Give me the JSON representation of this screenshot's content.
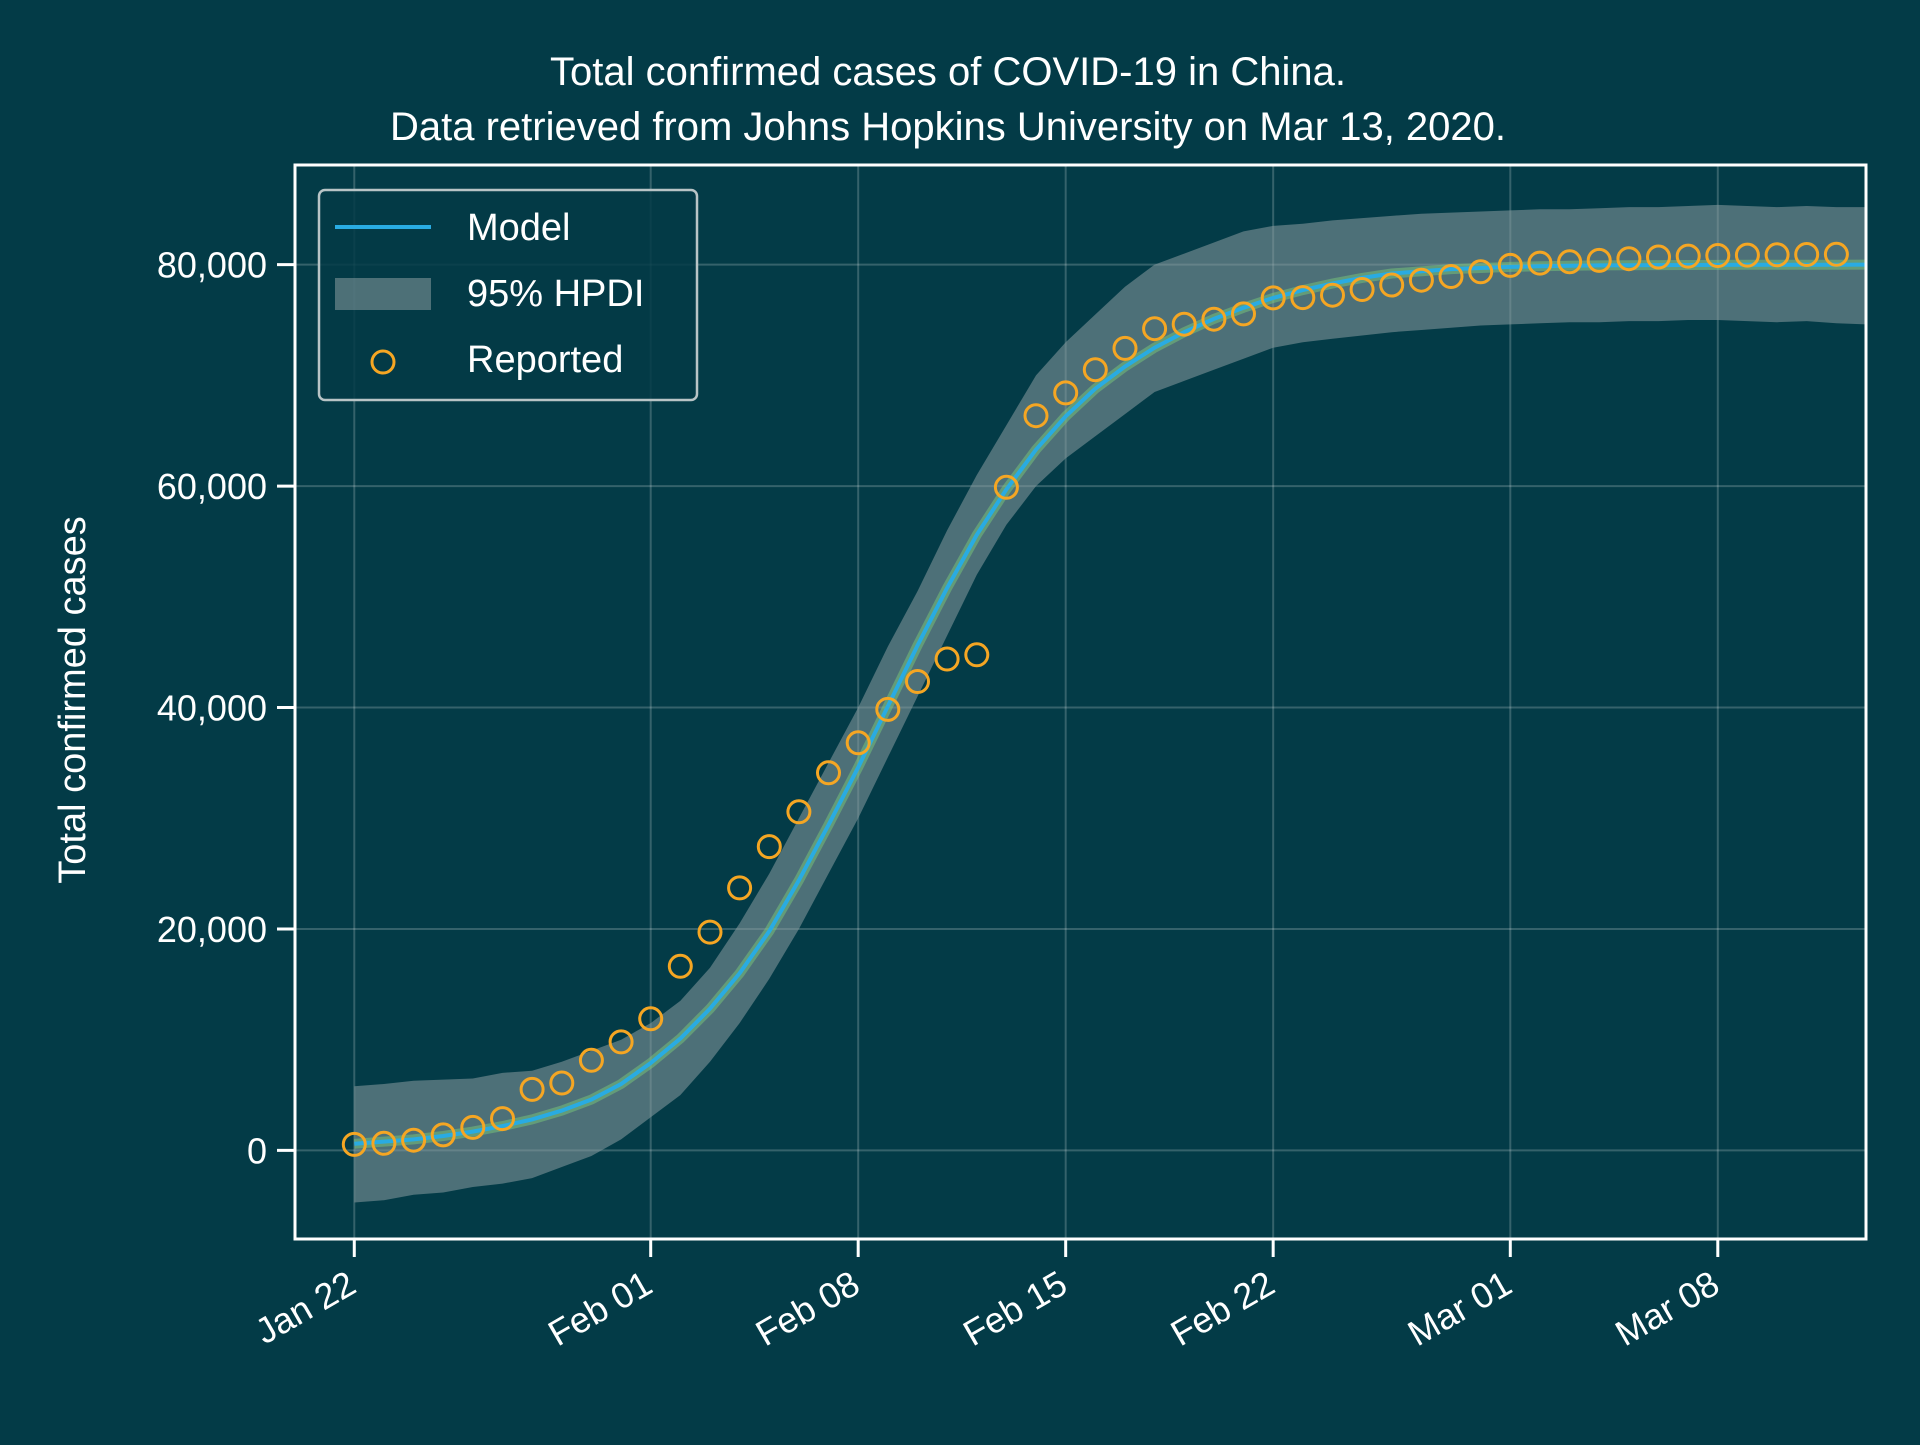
{
  "colors": {
    "background": "#033b47",
    "axes": "#ffffff",
    "grid": "#ffffff",
    "model": "#29abe2",
    "band": "#8a9da0",
    "band_center": "#7ed37a",
    "reported": "#f5a623"
  },
  "chart_data": {
    "type": "line",
    "title": "Total confirmed cases of COVID-19 in China.",
    "subtitle": "Data retrieved from Johns Hopkins University on Mar 13, 2020.",
    "xlabel": "",
    "ylabel": "Total confirmed cases",
    "x_type": "date",
    "x_range": [
      "2020-01-20",
      "2020-03-13"
    ],
    "xlim": [
      "2020-01-20",
      "2020-03-13"
    ],
    "ylim": [
      -8000,
      89000
    ],
    "grid": true,
    "legend_position": "upper-left",
    "x_ticks": [
      {
        "date": "2020-01-22",
        "label": "Jan 22"
      },
      {
        "date": "2020-02-01",
        "label": "Feb 01"
      },
      {
        "date": "2020-02-08",
        "label": "Feb 08"
      },
      {
        "date": "2020-02-15",
        "label": "Feb 15"
      },
      {
        "date": "2020-02-22",
        "label": "Feb 22"
      },
      {
        "date": "2020-03-01",
        "label": "Mar 01"
      },
      {
        "date": "2020-03-08",
        "label": "Mar 08"
      }
    ],
    "y_ticks": [
      {
        "value": 0,
        "label": "0"
      },
      {
        "value": 20000,
        "label": "20,000"
      },
      {
        "value": 40000,
        "label": "40,000"
      },
      {
        "value": 60000,
        "label": "60,000"
      },
      {
        "value": 80000,
        "label": "80,000"
      }
    ],
    "legend": [
      {
        "label": "Model",
        "kind": "line"
      },
      {
        "label": "95% HPDI",
        "kind": "band"
      },
      {
        "label": "Reported",
        "kind": "marker"
      }
    ],
    "series": [
      {
        "name": "Model",
        "kind": "line",
        "x": [
          "2020-01-22",
          "2020-01-23",
          "2020-01-24",
          "2020-01-25",
          "2020-01-26",
          "2020-01-27",
          "2020-01-28",
          "2020-01-29",
          "2020-01-30",
          "2020-01-31",
          "2020-02-01",
          "2020-02-02",
          "2020-02-03",
          "2020-02-04",
          "2020-02-05",
          "2020-02-06",
          "2020-02-07",
          "2020-02-08",
          "2020-02-09",
          "2020-02-10",
          "2020-02-11",
          "2020-02-12",
          "2020-02-13",
          "2020-02-14",
          "2020-02-15",
          "2020-02-16",
          "2020-02-17",
          "2020-02-18",
          "2020-02-19",
          "2020-02-20",
          "2020-02-21",
          "2020-02-22",
          "2020-02-23",
          "2020-02-24",
          "2020-02-25",
          "2020-02-26",
          "2020-02-27",
          "2020-02-28",
          "2020-02-29",
          "2020-03-01",
          "2020-03-02",
          "2020-03-03",
          "2020-03-04",
          "2020-03-05",
          "2020-03-06",
          "2020-03-07",
          "2020-03-08",
          "2020-03-09",
          "2020-03-10",
          "2020-03-11",
          "2020-03-12",
          "2020-03-13"
        ],
        "y": [
          600,
          800,
          1000,
          1300,
          1700,
          2200,
          2800,
          3600,
          4600,
          6000,
          7900,
          10100,
          12800,
          16000,
          19800,
          24400,
          29400,
          34600,
          40100,
          45600,
          50800,
          55600,
          59700,
          63300,
          66300,
          68800,
          70800,
          72500,
          73900,
          75100,
          76100,
          77000,
          77700,
          78300,
          78800,
          79200,
          79400,
          79600,
          79700,
          79800,
          79850,
          79900,
          79930,
          79950,
          79960,
          79970,
          79980,
          79985,
          79990,
          79990,
          79995,
          80000
        ]
      },
      {
        "name": "95% HPDI",
        "kind": "band",
        "x": [
          "2020-01-22",
          "2020-01-23",
          "2020-01-24",
          "2020-01-25",
          "2020-01-26",
          "2020-01-27",
          "2020-01-28",
          "2020-01-29",
          "2020-01-30",
          "2020-01-31",
          "2020-02-01",
          "2020-02-02",
          "2020-02-03",
          "2020-02-04",
          "2020-02-05",
          "2020-02-06",
          "2020-02-07",
          "2020-02-08",
          "2020-02-09",
          "2020-02-10",
          "2020-02-11",
          "2020-02-12",
          "2020-02-13",
          "2020-02-14",
          "2020-02-15",
          "2020-02-16",
          "2020-02-17",
          "2020-02-18",
          "2020-02-19",
          "2020-02-20",
          "2020-02-21",
          "2020-02-22",
          "2020-02-23",
          "2020-02-24",
          "2020-02-25",
          "2020-02-26",
          "2020-02-27",
          "2020-02-28",
          "2020-02-29",
          "2020-03-01",
          "2020-03-02",
          "2020-03-03",
          "2020-03-04",
          "2020-03-05",
          "2020-03-06",
          "2020-03-07",
          "2020-03-08",
          "2020-03-09",
          "2020-03-10",
          "2020-03-11",
          "2020-03-12",
          "2020-03-13"
        ],
        "lower": [
          -4700,
          -4500,
          -4000,
          -3800,
          -3300,
          -3000,
          -2500,
          -1500,
          -500,
          1000,
          3000,
          5000,
          8000,
          11500,
          15500,
          20000,
          25000,
          30000,
          35500,
          41000,
          46500,
          52000,
          56500,
          60000,
          62500,
          64500,
          66500,
          68500,
          69500,
          70500,
          71500,
          72500,
          73000,
          73300,
          73600,
          73900,
          74100,
          74300,
          74500,
          74600,
          74700,
          74800,
          74800,
          74900,
          74900,
          75000,
          75000,
          74900,
          74800,
          74900,
          74700,
          74600
        ],
        "upper": [
          5800,
          6000,
          6300,
          6400,
          6500,
          7000,
          7200,
          8000,
          9000,
          10000,
          11500,
          13500,
          16500,
          20500,
          25000,
          30000,
          35000,
          40000,
          45500,
          50500,
          56000,
          61000,
          65500,
          70000,
          73000,
          75500,
          78000,
          80000,
          81000,
          82000,
          83000,
          83500,
          83700,
          84000,
          84200,
          84400,
          84600,
          84700,
          84800,
          84900,
          85000,
          85000,
          85100,
          85200,
          85200,
          85300,
          85400,
          85300,
          85200,
          85300,
          85200,
          85200
        ]
      },
      {
        "name": "Reported",
        "kind": "scatter",
        "x": [
          "2020-01-22",
          "2020-01-23",
          "2020-01-24",
          "2020-01-25",
          "2020-01-26",
          "2020-01-27",
          "2020-01-28",
          "2020-01-29",
          "2020-01-30",
          "2020-01-31",
          "2020-02-01",
          "2020-02-02",
          "2020-02-03",
          "2020-02-04",
          "2020-02-05",
          "2020-02-06",
          "2020-02-07",
          "2020-02-08",
          "2020-02-09",
          "2020-02-10",
          "2020-02-11",
          "2020-02-12",
          "2020-02-13",
          "2020-02-14",
          "2020-02-15",
          "2020-02-16",
          "2020-02-17",
          "2020-02-18",
          "2020-02-19",
          "2020-02-20",
          "2020-02-21",
          "2020-02-22",
          "2020-02-23",
          "2020-02-24",
          "2020-02-25",
          "2020-02-26",
          "2020-02-27",
          "2020-02-28",
          "2020-02-29",
          "2020-03-01",
          "2020-03-02",
          "2020-03-03",
          "2020-03-04",
          "2020-03-05",
          "2020-03-06",
          "2020-03-07",
          "2020-03-08",
          "2020-03-09",
          "2020-03-10",
          "2020-03-11",
          "2020-03-12"
        ],
        "y": [
          548,
          643,
          920,
          1406,
          2075,
          2877,
          5509,
          6087,
          8141,
          9802,
          11891,
          16630,
          19716,
          23707,
          27440,
          30587,
          34110,
          36814,
          39829,
          42354,
          44386,
          44759,
          59895,
          66358,
          68413,
          70513,
          72434,
          74211,
          74619,
          75077,
          75550,
          77001,
          77022,
          77241,
          77754,
          78166,
          78600,
          78928,
          79356,
          79932,
          80136,
          80261,
          80386,
          80537,
          80690,
          80770,
          80823,
          80860,
          80887,
          80921,
          80932
        ]
      }
    ]
  }
}
